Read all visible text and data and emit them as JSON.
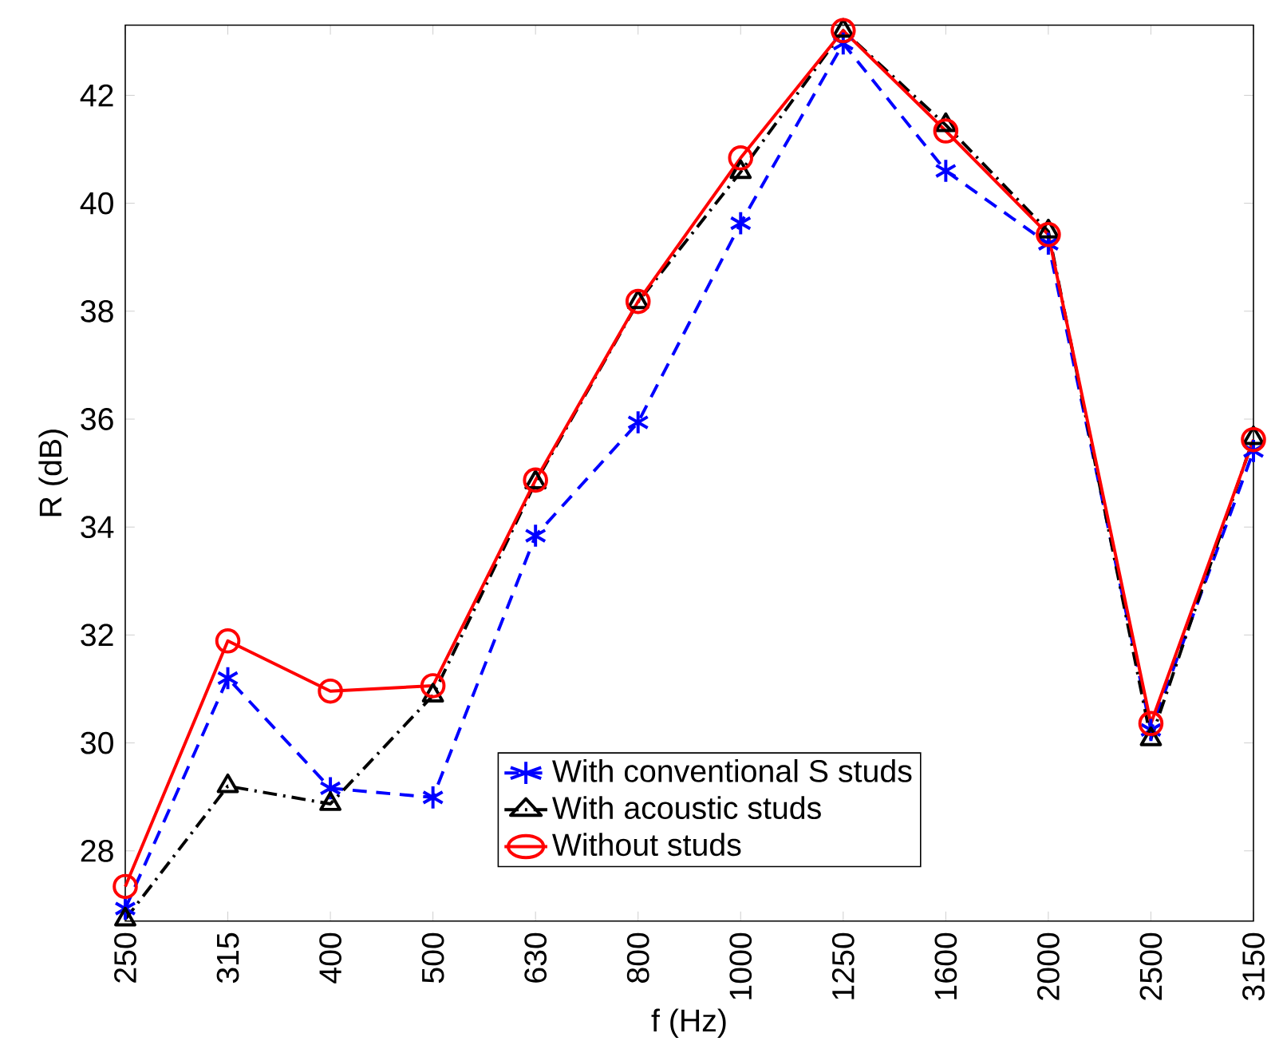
{
  "chart_data": {
    "type": "line",
    "xlabel": "f (Hz)",
    "ylabel": "R (dB)",
    "categories": [
      "250",
      "315",
      "400",
      "500",
      "630",
      "800",
      "1000",
      "1250",
      "1600",
      "2000",
      "2500",
      "3150"
    ],
    "ylim": [
      26.7,
      43.3
    ],
    "yticks": [
      28,
      30,
      32,
      34,
      36,
      38,
      40,
      42
    ],
    "grid": false,
    "legend": "bottom",
    "series": [
      {
        "name": "With conventional S studs",
        "color": "#0000ff",
        "marker": "cross",
        "line_style": "dashed",
        "values": [
          26.93,
          31.2,
          29.16,
          28.99,
          33.84,
          35.94,
          39.63,
          42.96,
          40.6,
          39.25,
          30.24,
          35.41
        ]
      },
      {
        "name": "With acoustic studs",
        "color": "#000000",
        "marker": "triangle",
        "line_style": "dashdot",
        "values": [
          26.73,
          29.2,
          28.87,
          30.88,
          34.83,
          38.17,
          40.58,
          43.2,
          41.45,
          39.48,
          30.07,
          35.65
        ]
      },
      {
        "name": "Without studs",
        "color": "#ff0000",
        "marker": "circle",
        "line_style": "solid",
        "values": [
          27.34,
          31.89,
          30.96,
          31.06,
          34.87,
          38.18,
          40.84,
          43.2,
          41.34,
          39.42,
          30.36,
          35.62
        ]
      }
    ]
  }
}
